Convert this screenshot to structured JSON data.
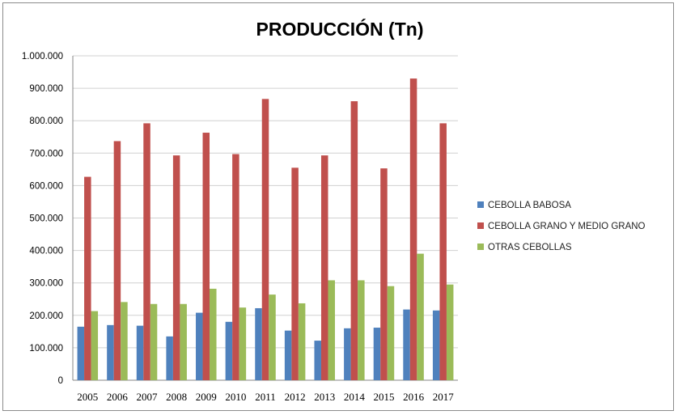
{
  "chart_data": {
    "type": "bar",
    "title": "PRODUCCIÓN (Tn)",
    "xlabel": "",
    "ylabel": "",
    "ylim": [
      0,
      1000000
    ],
    "yticks": [
      "0",
      "100.000",
      "200.000",
      "300.000",
      "400.000",
      "500.000",
      "600.000",
      "700.000",
      "800.000",
      "900.000",
      "1.000.000"
    ],
    "grid": true,
    "legend_position": "right",
    "categories": [
      "2005",
      "2006",
      "2007",
      "2008",
      "2009",
      "2010",
      "2011",
      "2012",
      "2013",
      "2014",
      "2015",
      "2016",
      "2017"
    ],
    "series": [
      {
        "name": "CEBOLLA BABOSA",
        "color": "#4F81BD",
        "values": [
          165000,
          170000,
          168000,
          135000,
          208000,
          180000,
          222000,
          153000,
          122000,
          160000,
          162000,
          218000,
          215000
        ]
      },
      {
        "name": "CEBOLLA GRANO Y MEDIO GRANO",
        "color": "#C0504D",
        "values": [
          627000,
          737000,
          792000,
          693000,
          763000,
          697000,
          867000,
          655000,
          693000,
          860000,
          653000,
          930000,
          792000
        ]
      },
      {
        "name": "OTRAS CEBOLLAS",
        "color": "#9BBB59",
        "values": [
          213000,
          241000,
          235000,
          235000,
          282000,
          224000,
          264000,
          237000,
          308000,
          308000,
          290000,
          390000,
          295000
        ]
      }
    ]
  }
}
